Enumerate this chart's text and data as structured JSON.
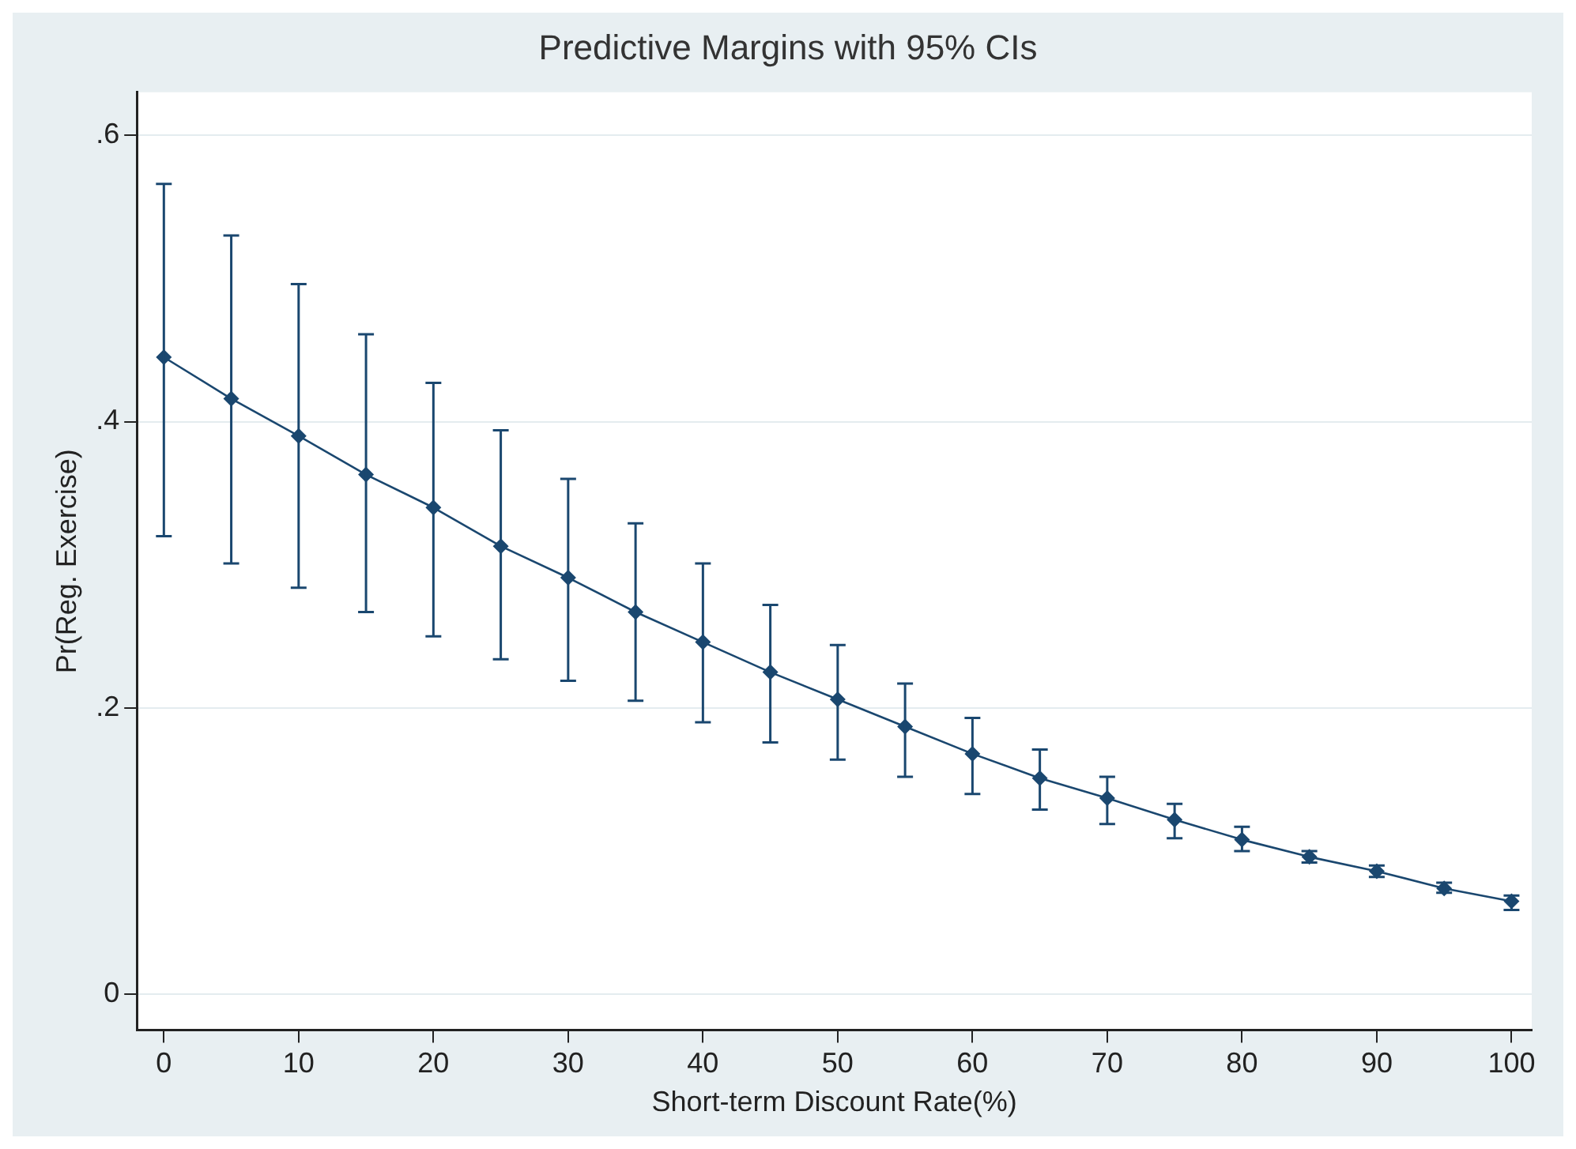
{
  "chart_data": {
    "type": "line",
    "title": "Predictive Margins with 95% CIs",
    "xlabel": "Short-term Discount Rate(%)",
    "ylabel": "Pr(Reg. Exercise)",
    "x": [
      0,
      5,
      10,
      15,
      20,
      25,
      30,
      35,
      40,
      45,
      50,
      55,
      60,
      65,
      70,
      75,
      80,
      85,
      90,
      95,
      100
    ],
    "series": [
      {
        "color": "#1a476f",
        "values": [
          0.445,
          0.416,
          0.39,
          0.363,
          0.34,
          0.313,
          0.291,
          0.267,
          0.246,
          0.225,
          0.206,
          0.187,
          0.168,
          0.151,
          0.137,
          0.122,
          0.108,
          0.096,
          0.086,
          0.074,
          0.065
        ],
        "errors": [
          [
            0.32,
            0.566
          ],
          [
            0.301,
            0.53
          ],
          [
            0.284,
            0.496
          ],
          [
            0.267,
            0.461
          ],
          [
            0.25,
            0.427
          ],
          [
            0.234,
            0.394
          ],
          [
            0.219,
            0.36
          ],
          [
            0.205,
            0.329
          ],
          [
            0.19,
            0.301
          ],
          [
            0.176,
            0.272
          ],
          [
            0.164,
            0.244
          ],
          [
            0.152,
            0.217
          ],
          [
            0.14,
            0.193
          ],
          [
            0.129,
            0.171
          ],
          [
            0.119,
            0.152
          ],
          [
            0.109,
            0.133
          ],
          [
            0.1,
            0.117
          ],
          [
            0.092,
            0.1
          ],
          [
            0.082,
            0.09
          ],
          [
            0.071,
            0.078
          ],
          [
            0.059,
            0.069
          ]
        ]
      }
    ],
    "xlim": [
      -2,
      101.5
    ],
    "xticks": [
      0,
      10,
      20,
      30,
      40,
      50,
      60,
      70,
      80,
      90,
      100
    ],
    "ylim": [
      -0.025,
      0.63
    ],
    "yticks": [
      {
        "value": 0,
        "label": "0"
      },
      {
        "value": 0.2,
        "label": ".2"
      },
      {
        "value": 0.4,
        "label": ".4"
      },
      {
        "value": 0.6,
        "label": ".6"
      }
    ],
    "grid": "y",
    "marker": "diamond",
    "line_style": "solid",
    "legend": false
  }
}
